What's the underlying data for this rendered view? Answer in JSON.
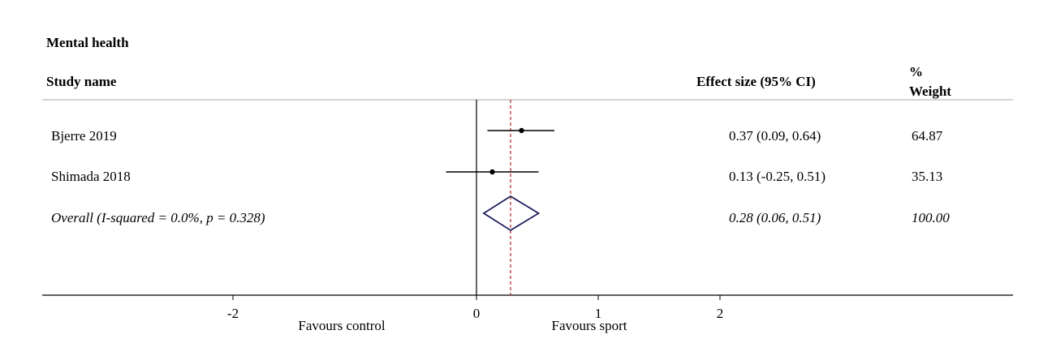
{
  "chart_data": {
    "type": "forest",
    "title": "Mental health",
    "headers": {
      "study": "Study name",
      "effect": "Effect size (95% CI)",
      "weight_line1": "%",
      "weight_line2": "Weight"
    },
    "studies": [
      {
        "name": "Bjerre 2019",
        "es": 0.37,
        "lo": 0.09,
        "hi": 0.64,
        "ci_text": "0.37 (0.09, 0.64)",
        "weight": "64.87"
      },
      {
        "name": "Shimada 2018",
        "es": 0.13,
        "lo": -0.25,
        "hi": 0.51,
        "ci_text": "0.13 (-0.25, 0.51)",
        "weight": "35.13"
      }
    ],
    "overall": {
      "label": "Overall  (I-squared = 0.0%, p = 0.328)",
      "es": 0.28,
      "lo": 0.06,
      "hi": 0.51,
      "ci_text": "0.28 (0.06, 0.51)",
      "weight": "100.00"
    },
    "x_ticks": [
      {
        "value": -2,
        "label": "-2"
      },
      {
        "value": 0,
        "label": "0"
      },
      {
        "value": 1,
        "label": "1"
      },
      {
        "value": 2,
        "label": "2"
      }
    ],
    "favours_left": "Favours control",
    "favours_right": "Favours sport",
    "null_line": 0,
    "colors": {
      "diamond": "#1f1f5e",
      "overall_line": "#b22222",
      "ink": "#000000",
      "rule": "#bbbbbb"
    }
  }
}
